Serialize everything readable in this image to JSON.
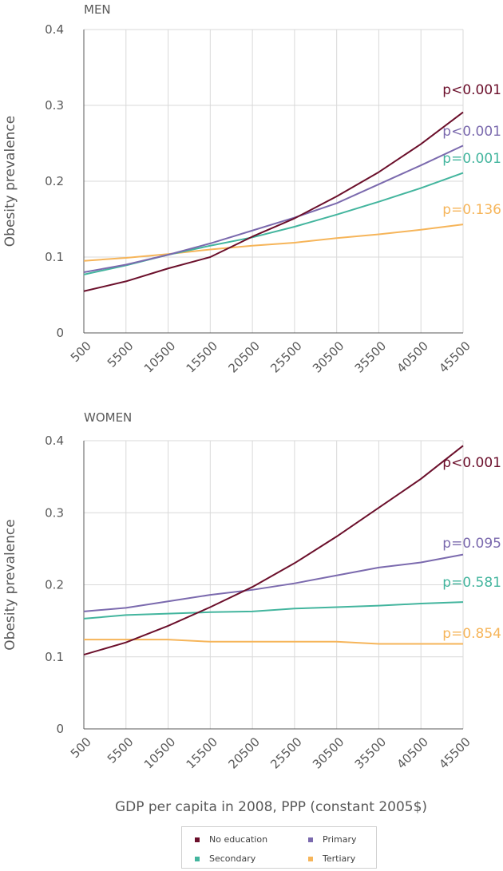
{
  "chart_data": [
    {
      "type": "line",
      "title": "MEN",
      "ylabel": "Obesity prevalence",
      "xlabel": "",
      "ylim": [
        0,
        0.4
      ],
      "yticks": [
        "0",
        "0.1",
        "0.2",
        "0.3",
        "0.4"
      ],
      "categories": [
        "500",
        "5500",
        "10500",
        "15500",
        "20500",
        "25500",
        "30500",
        "35500",
        "40500",
        "45500"
      ],
      "series": [
        {
          "name": "No education",
          "color": "#6b0f2b",
          "p_label": "p<0.001",
          "values": [
            0.055,
            0.068,
            0.085,
            0.1,
            0.127,
            0.151,
            0.18,
            0.212,
            0.249,
            0.291
          ]
        },
        {
          "name": "Primary",
          "color": "#7b6aae",
          "p_label": "p<0.001",
          "values": [
            0.08,
            0.09,
            0.103,
            0.118,
            0.135,
            0.152,
            0.171,
            0.196,
            0.221,
            0.247
          ]
        },
        {
          "name": "Secondary",
          "color": "#43b59e",
          "p_label": "p=0.001",
          "values": [
            0.077,
            0.089,
            0.103,
            0.115,
            0.126,
            0.14,
            0.156,
            0.173,
            0.191,
            0.211
          ]
        },
        {
          "name": "Tertiary",
          "color": "#f6b55a",
          "p_label": "p=0.136",
          "values": [
            0.095,
            0.099,
            0.104,
            0.11,
            0.115,
            0.119,
            0.125,
            0.13,
            0.136,
            0.143
          ]
        }
      ]
    },
    {
      "type": "line",
      "title": "WOMEN",
      "ylabel": "Obesity prevalence",
      "xlabel": "GDP per capita in 2008, PPP (constant 2005$)",
      "ylim": [
        0,
        0.4
      ],
      "yticks": [
        "0",
        "0.1",
        "0.2",
        "0.3",
        "0.4"
      ],
      "categories": [
        "500",
        "5500",
        "10500",
        "15500",
        "20500",
        "25500",
        "30500",
        "35500",
        "40500",
        "45500"
      ],
      "series": [
        {
          "name": "No education",
          "color": "#6b0f2b",
          "p_label": "p<0.001",
          "values": [
            0.103,
            0.12,
            0.143,
            0.169,
            0.197,
            0.23,
            0.267,
            0.307,
            0.347,
            0.393
          ]
        },
        {
          "name": "Primary",
          "color": "#7b6aae",
          "p_label": "p=0.095",
          "values": [
            0.163,
            0.168,
            0.177,
            0.186,
            0.193,
            0.202,
            0.213,
            0.224,
            0.231,
            0.242
          ]
        },
        {
          "name": "Secondary",
          "color": "#43b59e",
          "p_label": "p=0.581",
          "values": [
            0.153,
            0.158,
            0.16,
            0.162,
            0.163,
            0.167,
            0.169,
            0.171,
            0.174,
            0.176
          ]
        },
        {
          "name": "Tertiary",
          "color": "#f6b55a",
          "p_label": "p=0.854",
          "values": [
            0.124,
            0.124,
            0.124,
            0.121,
            0.121,
            0.121,
            0.121,
            0.118,
            0.118,
            0.118
          ]
        }
      ]
    }
  ],
  "legend": {
    "items": [
      {
        "label": "No education",
        "color": "#6b0f2b"
      },
      {
        "label": "Primary",
        "color": "#7b6aae"
      },
      {
        "label": "Secondary",
        "color": "#43b59e"
      },
      {
        "label": "Tertiary",
        "color": "#f6b55a"
      }
    ]
  }
}
